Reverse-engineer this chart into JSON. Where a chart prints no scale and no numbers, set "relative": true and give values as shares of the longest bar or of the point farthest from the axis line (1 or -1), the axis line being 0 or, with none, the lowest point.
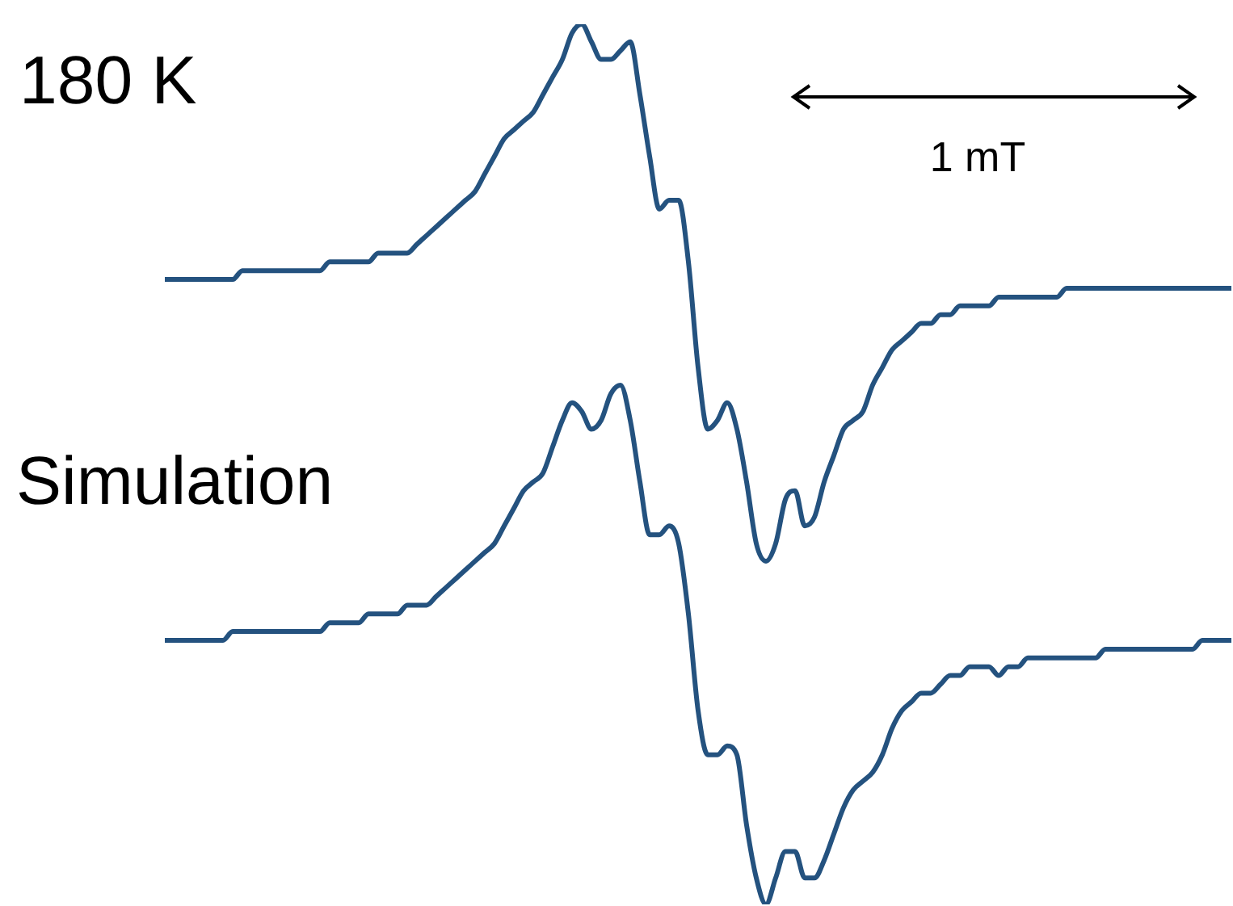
{
  "chart_data": {
    "type": "line",
    "relative": true,
    "legend": false,
    "marker": "none",
    "line_style": "solid",
    "categories": [
      null,
      null,
      null,
      null,
      null,
      null,
      null,
      null,
      null,
      null,
      null,
      null,
      null,
      null,
      null,
      null,
      null,
      null,
      null,
      null,
      null,
      null,
      null,
      null,
      null,
      null,
      null,
      null,
      null,
      null,
      null,
      null,
      null,
      null,
      null,
      null,
      null,
      null,
      null,
      null,
      null,
      null,
      null,
      null,
      null,
      null,
      null,
      null,
      null,
      null,
      null,
      null,
      null,
      null,
      null,
      null,
      null,
      null,
      null,
      null,
      null,
      null,
      null,
      null,
      null,
      null,
      null,
      null,
      null,
      null,
      null,
      null,
      null,
      null,
      null,
      null,
      null,
      null,
      null,
      null,
      null,
      null,
      null,
      null,
      null,
      null,
      null,
      null,
      null,
      null,
      null,
      null,
      null,
      null,
      null,
      null,
      null,
      null,
      null,
      null,
      null,
      null,
      null,
      null,
      null,
      null,
      null,
      null,
      null,
      null,
      null
    ],
    "series": [
      {
        "name": "180 K",
        "color": "#24527f",
        "values": [
          0.71,
          0.71,
          0.71,
          0.71,
          0.71,
          0.71,
          0.71,
          0.71,
          0.72,
          0.72,
          0.72,
          0.72,
          0.72,
          0.72,
          0.72,
          0.72,
          0.72,
          0.73,
          0.73,
          0.73,
          0.73,
          0.73,
          0.74,
          0.74,
          0.74,
          0.74,
          0.75,
          0.76,
          0.77,
          0.78,
          0.79,
          0.8,
          0.81,
          0.83,
          0.85,
          0.87,
          0.88,
          0.89,
          0.9,
          0.92,
          0.94,
          0.96,
          0.99,
          1.0,
          0.98,
          0.96,
          0.96,
          0.97,
          0.98,
          0.92,
          0.85,
          0.79,
          0.8,
          0.8,
          0.73,
          0.61,
          0.54,
          0.55,
          0.57,
          0.54,
          0.48,
          0.41,
          0.39,
          0.41,
          0.46,
          0.47,
          0.43,
          0.44,
          0.48,
          0.51,
          0.54,
          0.55,
          0.56,
          0.59,
          0.61,
          0.63,
          0.64,
          0.65,
          0.66,
          0.66,
          0.67,
          0.67,
          0.68,
          0.68,
          0.68,
          0.68,
          0.69,
          0.69,
          0.69,
          0.69,
          0.69,
          0.69,
          0.69,
          0.7,
          0.7,
          0.7,
          0.7,
          0.7,
          0.7,
          0.7,
          0.7,
          0.7,
          0.7,
          0.7,
          0.7,
          0.7,
          0.7,
          0.7,
          0.7,
          0.7,
          0.7
        ]
      },
      {
        "name": "Simulation",
        "color": "#24527f",
        "values": [
          0.3,
          0.3,
          0.3,
          0.3,
          0.3,
          0.3,
          0.3,
          0.31,
          0.31,
          0.31,
          0.31,
          0.31,
          0.31,
          0.31,
          0.31,
          0.31,
          0.31,
          0.32,
          0.32,
          0.32,
          0.32,
          0.33,
          0.33,
          0.33,
          0.33,
          0.34,
          0.34,
          0.34,
          0.35,
          0.36,
          0.37,
          0.38,
          0.39,
          0.4,
          0.41,
          0.43,
          0.45,
          0.47,
          0.48,
          0.49,
          0.52,
          0.55,
          0.57,
          0.56,
          0.54,
          0.55,
          0.58,
          0.59,
          0.55,
          0.48,
          0.42,
          0.42,
          0.43,
          0.41,
          0.33,
          0.22,
          0.17,
          0.17,
          0.18,
          0.17,
          0.09,
          0.03,
          0.0,
          0.03,
          0.06,
          0.06,
          0.03,
          0.03,
          0.05,
          0.08,
          0.11,
          0.13,
          0.14,
          0.15,
          0.17,
          0.2,
          0.22,
          0.23,
          0.24,
          0.24,
          0.25,
          0.26,
          0.26,
          0.27,
          0.27,
          0.27,
          0.26,
          0.27,
          0.27,
          0.28,
          0.28,
          0.28,
          0.28,
          0.28,
          0.28,
          0.28,
          0.28,
          0.29,
          0.29,
          0.29,
          0.29,
          0.29,
          0.29,
          0.29,
          0.29,
          0.29,
          0.29,
          0.3,
          0.3,
          0.3,
          0.3
        ]
      }
    ],
    "annotations": [
      "1 mT"
    ]
  }
}
